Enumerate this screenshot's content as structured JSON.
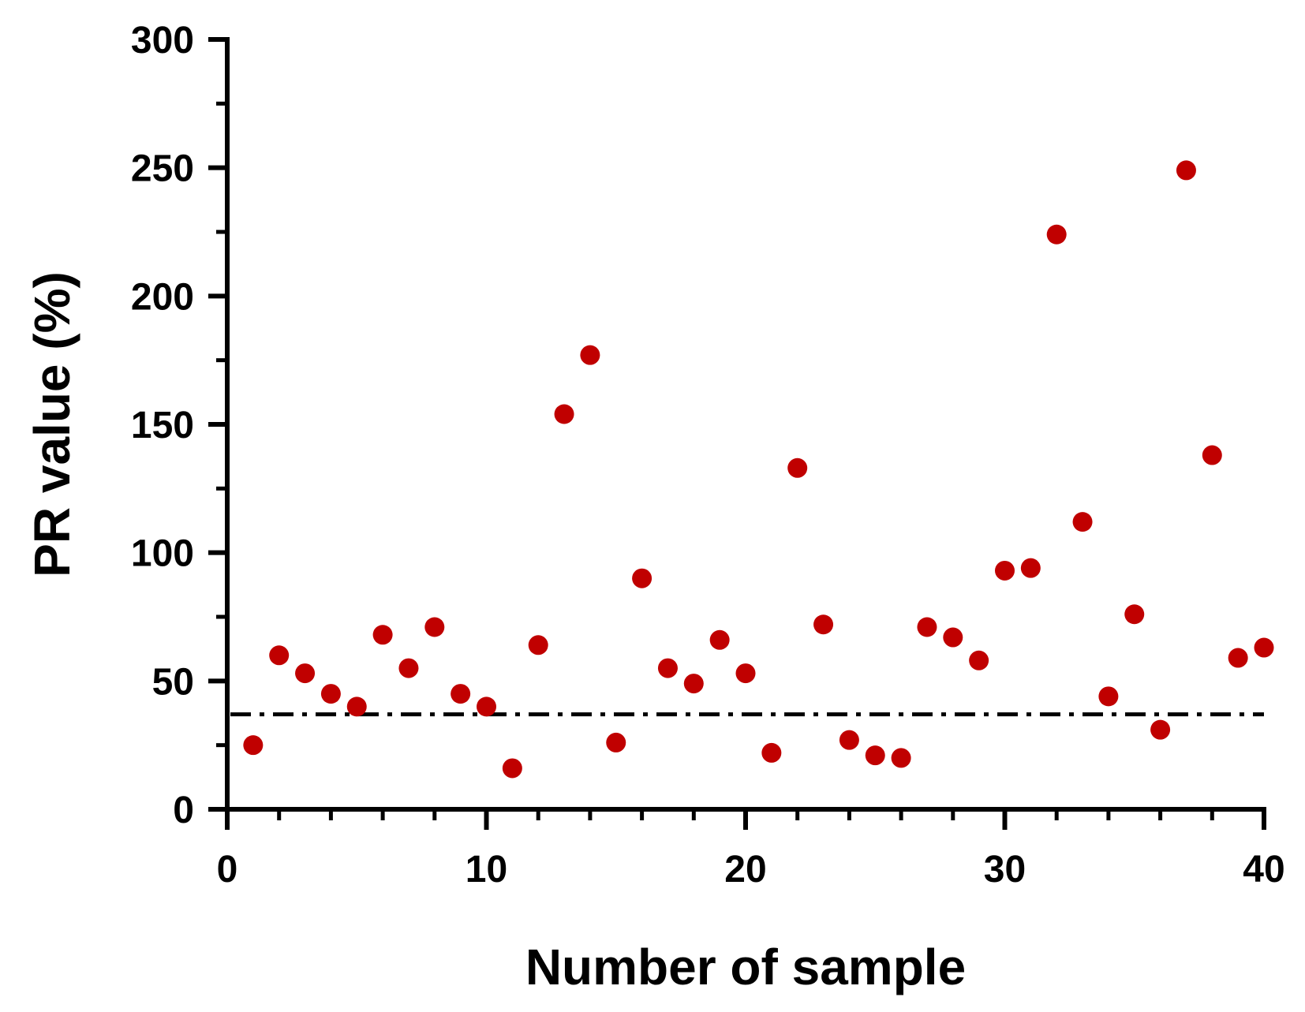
{
  "chart_data": {
    "type": "scatter",
    "title": "",
    "xlabel": "Number of sample",
    "ylabel": "PR value (%)",
    "xlim": [
      0,
      40
    ],
    "ylim": [
      0,
      300
    ],
    "x_ticks": [
      0,
      10,
      20,
      30,
      40
    ],
    "y_ticks": [
      0,
      50,
      100,
      150,
      200,
      250,
      300
    ],
    "y_minor_step": 25,
    "x_minor_step": 2,
    "grid": false,
    "legend": "none",
    "marker_color": "#c00000",
    "reference_line": {
      "y": 37,
      "style": "dash-dot",
      "color": "#000000"
    },
    "series": [
      {
        "x": [
          1,
          2,
          3,
          4,
          5,
          6,
          7,
          8,
          9,
          10,
          11,
          12,
          13,
          14,
          15,
          16,
          17,
          18,
          19,
          20,
          21,
          22,
          23,
          24,
          25,
          26,
          27,
          28,
          29,
          30,
          31,
          32,
          33,
          34,
          35,
          36,
          37,
          38,
          39,
          40
        ],
        "values": [
          25,
          60,
          53,
          45,
          40,
          68,
          55,
          71,
          45,
          40,
          16,
          64,
          154,
          177,
          26,
          90,
          55,
          49,
          66,
          53,
          22,
          133,
          72,
          27,
          21,
          20,
          71,
          67,
          58,
          93,
          94,
          224,
          112,
          44,
          76,
          31,
          249,
          138,
          59,
          63
        ]
      }
    ]
  }
}
